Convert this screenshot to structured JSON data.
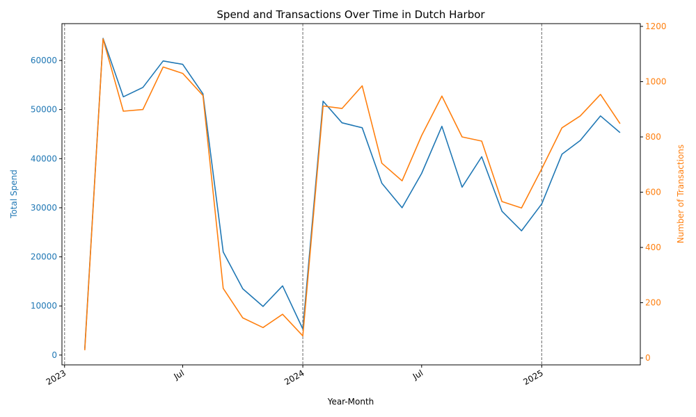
{
  "chart_data": {
    "type": "line",
    "title": "Spend and Transactions Over Time in Dutch Harbor",
    "xlabel": "Year-Month",
    "ylabel_left": "Total Spend",
    "ylabel_right": "Number of Transactions",
    "x_ticks": [
      {
        "date": "2023-01",
        "label": "2023"
      },
      {
        "date": "2023-07",
        "label": "Jul"
      },
      {
        "date": "2024-01",
        "label": "2024"
      },
      {
        "date": "2024-07",
        "label": "Jul"
      },
      {
        "date": "2025-01",
        "label": "2025"
      }
    ],
    "vlines": [
      "2023-01",
      "2024-01",
      "2025-01"
    ],
    "xlim": [
      "2022-12-28",
      "2025-06-01"
    ],
    "y_left_ticks": [
      0,
      10000,
      20000,
      30000,
      40000,
      50000,
      60000
    ],
    "y_left_lim": [
      -2000,
      67500
    ],
    "y_right_ticks": [
      0,
      200,
      400,
      600,
      800,
      1000,
      1200
    ],
    "y_right_lim": [
      -25,
      1210
    ],
    "grid": false,
    "colors": {
      "spend": "#1f77b4",
      "transactions": "#ff7f0e",
      "vline": "#808080"
    },
    "x": [
      "2023-02",
      "2023-03",
      "2023-04",
      "2023-05",
      "2023-06",
      "2023-07",
      "2023-08",
      "2023-09",
      "2023-10",
      "2023-11",
      "2023-12",
      "2024-01",
      "2024-02",
      "2024-03",
      "2024-04",
      "2024-05",
      "2024-06",
      "2024-07",
      "2024-08",
      "2024-09",
      "2024-10",
      "2024-11",
      "2024-12",
      "2025-01",
      "2025-02",
      "2025-03",
      "2025-04",
      "2025-05"
    ],
    "series": [
      {
        "name": "Total Spend",
        "axis": "left",
        "values": [
          1300,
          64500,
          52600,
          54500,
          59900,
          59200,
          53200,
          21000,
          13500,
          9900,
          14100,
          5300,
          51700,
          47300,
          46300,
          35000,
          30000,
          37000,
          46600,
          34200,
          40400,
          29300,
          25300,
          30800,
          40900,
          43700,
          48700,
          45300
        ]
      },
      {
        "name": "Number of Transactions",
        "axis": "right",
        "values": [
          28,
          1155,
          893,
          899,
          1053,
          1030,
          950,
          252,
          145,
          110,
          158,
          80,
          912,
          903,
          985,
          705,
          641,
          805,
          948,
          800,
          785,
          566,
          543,
          685,
          833,
          876,
          954,
          848
        ]
      }
    ]
  }
}
